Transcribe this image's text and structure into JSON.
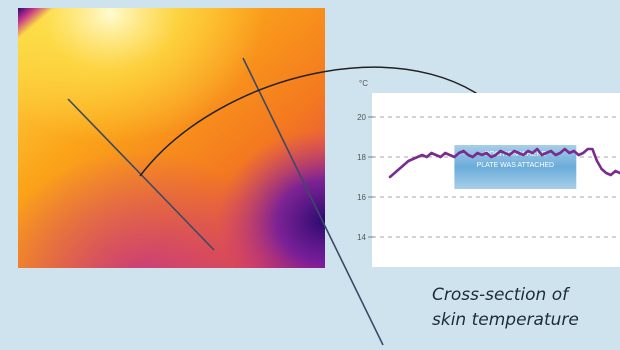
{
  "thermal_image": {
    "palette": [
      "#2a0a6e",
      "#6a1aa3",
      "#c2338a",
      "#f15a24",
      "#fba41a",
      "#fde04a",
      "#fffbd0"
    ]
  },
  "chart_data": {
    "type": "line",
    "ylabel": "°C",
    "ylim": [
      12.5,
      21.2
    ],
    "yticks": [
      14,
      16,
      18,
      20
    ],
    "grid": true,
    "x": [
      0,
      0.02,
      0.04,
      0.06,
      0.08,
      0.1,
      0.12,
      0.14,
      0.16,
      0.18,
      0.2,
      0.22,
      0.24,
      0.26,
      0.28,
      0.3,
      0.32,
      0.34,
      0.36,
      0.38,
      0.4,
      0.42,
      0.44,
      0.46,
      0.48,
      0.5,
      0.52,
      0.54,
      0.56,
      0.58,
      0.6,
      0.62,
      0.64,
      0.66,
      0.68,
      0.7,
      0.72,
      0.74,
      0.76,
      0.78,
      0.8,
      0.82,
      0.84,
      0.86,
      0.88,
      0.9,
      0.92,
      0.94,
      0.96,
      0.98,
      1.0
    ],
    "series": [
      {
        "color": "#7a2b8e",
        "values": [
          17.0,
          17.2,
          17.4,
          17.6,
          17.8,
          17.9,
          18.0,
          18.1,
          18.0,
          18.2,
          18.1,
          18.0,
          18.2,
          18.1,
          18.0,
          18.2,
          18.3,
          18.1,
          18.0,
          18.2,
          18.1,
          18.2,
          18.0,
          18.1,
          18.3,
          18.2,
          18.1,
          18.3,
          18.2,
          18.1,
          18.3,
          18.2,
          18.4,
          18.1,
          18.2,
          18.3,
          18.1,
          18.2,
          18.4,
          18.2,
          18.3,
          18.1,
          18.2,
          18.4,
          18.4,
          17.8,
          17.4,
          17.2,
          17.1,
          17.3,
          17.2
        ]
      }
    ],
    "annotation": {
      "lines": [
        "POSITION WHERE",
        "PLATE WAS ATTACHED"
      ],
      "x_range": [
        0.28,
        0.81
      ],
      "y_range": [
        16.4,
        18.6
      ]
    },
    "caption_lines": [
      "Cross-section of",
      "skin temperature"
    ]
  }
}
